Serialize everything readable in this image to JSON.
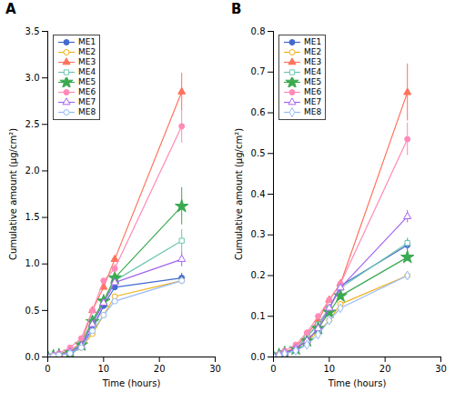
{
  "chart_data": [
    {
      "type": "line",
      "title": "A",
      "xlabel": "Time (hours)",
      "ylabel": "Cumulative amount (μg/cm²)",
      "xlim": [
        0,
        30
      ],
      "ylim": [
        0,
        3.5
      ],
      "xticks": [
        0,
        10,
        20,
        30
      ],
      "yticks": [
        {
          "value": 0,
          "label": "0.0"
        },
        0.5,
        {
          "value": 1.0,
          "label": "1.0"
        },
        1.5,
        {
          "value": 2.0,
          "label": "2.0"
        },
        2.5,
        {
          "value": 3.0,
          "label": "3.0"
        },
        3.5
      ],
      "grid": false,
      "legend": "upper-left",
      "x": [
        0,
        1,
        2,
        4,
        6,
        8,
        10,
        12,
        24
      ],
      "series": [
        {
          "name": "ME1",
          "values": [
            0,
            0.01,
            0.02,
            0.05,
            0.12,
            0.3,
            0.55,
            0.75,
            0.85
          ],
          "yerr": [
            0,
            0,
            0,
            0,
            0,
            0,
            0,
            0,
            0.05
          ],
          "marker": "circle",
          "line_style": "solid"
        },
        {
          "name": "ME2",
          "values": [
            0,
            0.01,
            0.02,
            0.04,
            0.1,
            0.25,
            0.45,
            0.65,
            0.82
          ],
          "yerr": [
            0,
            0,
            0,
            0,
            0,
            0,
            0,
            0,
            0.04
          ],
          "marker": "circle-open",
          "line_style": "solid"
        },
        {
          "name": "ME3",
          "values": [
            0,
            0.01,
            0.03,
            0.07,
            0.15,
            0.5,
            0.75,
            1.05,
            2.85
          ],
          "yerr": [
            0,
            0,
            0,
            0,
            0,
            0,
            0,
            0,
            0.2
          ],
          "marker": "triangle",
          "line_style": "solid"
        },
        {
          "name": "ME4",
          "values": [
            0,
            0.01,
            0.02,
            0.06,
            0.14,
            0.4,
            0.6,
            0.82,
            1.25
          ],
          "yerr": [
            0,
            0,
            0,
            0,
            0,
            0,
            0,
            0.05,
            0.12
          ],
          "marker": "square-open",
          "line_style": "solid"
        },
        {
          "name": "ME5",
          "values": [
            0,
            0.01,
            0.02,
            0.05,
            0.13,
            0.38,
            0.6,
            0.85,
            1.62
          ],
          "yerr": [
            0,
            0,
            0,
            0,
            0,
            0,
            0,
            0.04,
            0.2
          ],
          "marker": "star",
          "line_style": "solid"
        },
        {
          "name": "ME6",
          "values": [
            0,
            0.02,
            0.04,
            0.1,
            0.2,
            0.5,
            0.82,
            0.95,
            2.48
          ],
          "yerr": [
            0,
            0,
            0,
            0,
            0,
            0,
            0,
            0.05,
            0.18
          ],
          "marker": "circle",
          "line_style": "solid"
        },
        {
          "name": "ME7",
          "values": [
            0,
            0.01,
            0.02,
            0.05,
            0.12,
            0.35,
            0.58,
            0.8,
            1.05
          ],
          "yerr": [
            0,
            0,
            0,
            0,
            0,
            0,
            0,
            0.03,
            0.08
          ],
          "marker": "triangle-open",
          "line_style": "solid"
        },
        {
          "name": "ME8",
          "values": [
            0,
            0.01,
            0.02,
            0.04,
            0.1,
            0.28,
            0.45,
            0.6,
            0.82
          ],
          "yerr": [
            0,
            0,
            0,
            0,
            0,
            0,
            0,
            0.02,
            0.04
          ],
          "marker": "circle-open",
          "line_style": "solid"
        }
      ]
    },
    {
      "type": "line",
      "title": "B",
      "xlabel": "Time (hours)",
      "ylabel": "Cumulative amount (μg/cm²)",
      "xlim": [
        0,
        30
      ],
      "ylim": [
        0,
        0.8
      ],
      "xticks": [
        0,
        10,
        20,
        30
      ],
      "yticks": [
        {
          "value": 0,
          "label": "0.0"
        },
        0.1,
        0.2,
        0.3,
        0.4,
        0.5,
        0.6,
        0.7,
        0.8
      ],
      "grid": false,
      "legend": "upper-left",
      "x": [
        0,
        1,
        2,
        4,
        6,
        8,
        10,
        12,
        24
      ],
      "series": [
        {
          "name": "ME1",
          "values": [
            0,
            0.005,
            0.01,
            0.02,
            0.05,
            0.08,
            0.12,
            0.175,
            0.275
          ],
          "yerr": [
            0,
            0,
            0,
            0,
            0,
            0,
            0,
            0.005,
            0.015
          ],
          "marker": "circle",
          "line_style": "solid"
        },
        {
          "name": "ME2",
          "values": [
            0,
            0.005,
            0.01,
            0.02,
            0.04,
            0.06,
            0.09,
            0.13,
            0.2
          ],
          "yerr": [
            0,
            0,
            0,
            0,
            0,
            0,
            0,
            0.004,
            0.01
          ],
          "marker": "circle-open",
          "line_style": "solid"
        },
        {
          "name": "ME3",
          "values": [
            0,
            0.005,
            0.01,
            0.025,
            0.055,
            0.09,
            0.14,
            0.18,
            0.65
          ],
          "yerr": [
            0,
            0,
            0,
            0,
            0,
            0,
            0,
            0.005,
            0.07
          ],
          "marker": "triangle",
          "line_style": "solid"
        },
        {
          "name": "ME4",
          "values": [
            0,
            0.005,
            0.01,
            0.02,
            0.05,
            0.08,
            0.12,
            0.17,
            0.28
          ],
          "yerr": [
            0,
            0,
            0,
            0,
            0,
            0,
            0,
            0.004,
            0.012
          ],
          "marker": "square-open",
          "line_style": "solid"
        },
        {
          "name": "ME5",
          "values": [
            0,
            0.005,
            0.01,
            0.02,
            0.04,
            0.07,
            0.11,
            0.15,
            0.245
          ],
          "yerr": [
            0,
            0,
            0,
            0,
            0,
            0,
            0,
            0.003,
            0.01
          ],
          "marker": "star",
          "line_style": "solid"
        },
        {
          "name": "ME6",
          "values": [
            0,
            0.007,
            0.015,
            0.03,
            0.06,
            0.1,
            0.14,
            0.18,
            0.535
          ],
          "yerr": [
            0,
            0,
            0,
            0,
            0,
            0,
            0,
            0.005,
            0.04
          ],
          "marker": "circle",
          "line_style": "solid"
        },
        {
          "name": "ME7",
          "values": [
            0,
            0.005,
            0.01,
            0.02,
            0.04,
            0.07,
            0.12,
            0.17,
            0.345
          ],
          "yerr": [
            0,
            0,
            0,
            0,
            0,
            0,
            0,
            0.003,
            0.015
          ],
          "marker": "triangle-open",
          "line_style": "solid"
        },
        {
          "name": "ME8",
          "values": [
            0,
            0.004,
            0.008,
            0.015,
            0.03,
            0.055,
            0.09,
            0.12,
            0.2
          ],
          "yerr": [
            0,
            0,
            0,
            0,
            0,
            0,
            0,
            0.002,
            0.008
          ],
          "marker": "diamond-open",
          "line_style": "solid"
        }
      ]
    }
  ]
}
